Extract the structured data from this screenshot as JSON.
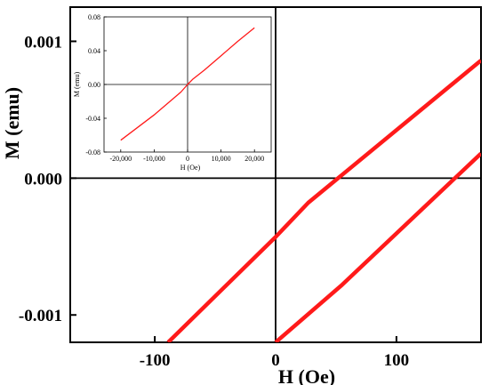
{
  "chart_data": [
    {
      "type": "line",
      "title": "",
      "xlabel": "H (Oe)",
      "ylabel": "M (emu)",
      "xlim": [
        -170,
        170
      ],
      "ylim": [
        -0.0012,
        0.00125
      ],
      "x_ticks": [
        -100,
        0,
        100
      ],
      "x_tick_labels": [
        "-100",
        "0",
        "100"
      ],
      "y_ticks": [
        -0.001,
        0.0,
        0.001
      ],
      "y_tick_labels": [
        "-0.001",
        "0.000",
        "0.001"
      ],
      "zero_lines": true,
      "grid": false,
      "legend": "none",
      "series_color": "#ff1a1a",
      "series": [
        {
          "x": [
            -89,
            0,
            27,
            170
          ],
          "y": [
            -0.0012,
            -0.00043,
            -0.00018,
            0.00086
          ]
        },
        {
          "x": [
            0,
            55,
            170
          ],
          "y": [
            -0.0012,
            -0.00078,
            0.00018
          ]
        }
      ]
    },
    {
      "type": "line",
      "title": "",
      "xlabel": "H (Oe)",
      "ylabel": "M (emu)",
      "xlim": [
        -25000,
        25000
      ],
      "ylim": [
        -0.08,
        0.08
      ],
      "x_ticks": [
        -20000,
        -10000,
        0,
        10000,
        20000
      ],
      "x_tick_labels": [
        "-20,000",
        "-10,000",
        "0",
        "10,000",
        "20,000"
      ],
      "y_ticks": [
        -0.08,
        -0.04,
        0.0,
        0.04,
        0.08
      ],
      "y_tick_labels": [
        "-0.08",
        "-0.04",
        "0.00",
        "0.04",
        "0.08"
      ],
      "zero_lines": true,
      "grid": false,
      "legend": "none",
      "series_color": "#ff1a1a",
      "series": [
        {
          "x": [
            -20000,
            -10000,
            -2000,
            0,
            1500,
            5000,
            10000,
            15000,
            20000
          ],
          "y": [
            -0.066,
            -0.036,
            -0.009,
            0.0,
            0.006,
            0.017,
            0.034,
            0.051,
            0.067
          ]
        }
      ]
    }
  ]
}
